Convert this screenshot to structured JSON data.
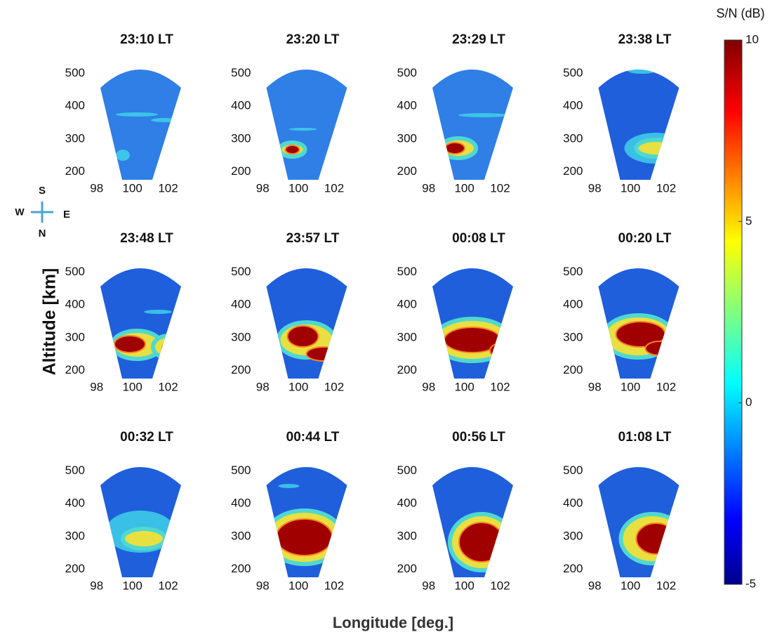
{
  "chart_data": {
    "type": "heatmap",
    "x_label": "Longitude [deg.]",
    "y_label": "Altitude [km]",
    "xlim": [
      97.5,
      103
    ],
    "xticks": [
      98,
      100,
      102
    ],
    "ylim": [
      150,
      550
    ],
    "yticks": [
      200,
      300,
      400,
      500
    ],
    "panels": [
      {
        "title": "23:10 LT"
      },
      {
        "title": "23:20 LT"
      },
      {
        "title": "23:29 LT"
      },
      {
        "title": "23:38 LT"
      },
      {
        "title": "23:48 LT"
      },
      {
        "title": "23:57 LT"
      },
      {
        "title": "00:08 LT"
      },
      {
        "title": "00:20 LT"
      },
      {
        "title": "00:32 LT"
      },
      {
        "title": "00:44 LT"
      },
      {
        "title": "00:56 LT"
      },
      {
        "title": "01:08 LT"
      }
    ],
    "colorbar": {
      "label": "S/N (dB)",
      "lim": [
        -5,
        10
      ],
      "ticks": [
        -5,
        0,
        5,
        10
      ]
    },
    "compass": {
      "north": "N",
      "south": "S",
      "east": "E",
      "west": "W"
    }
  }
}
